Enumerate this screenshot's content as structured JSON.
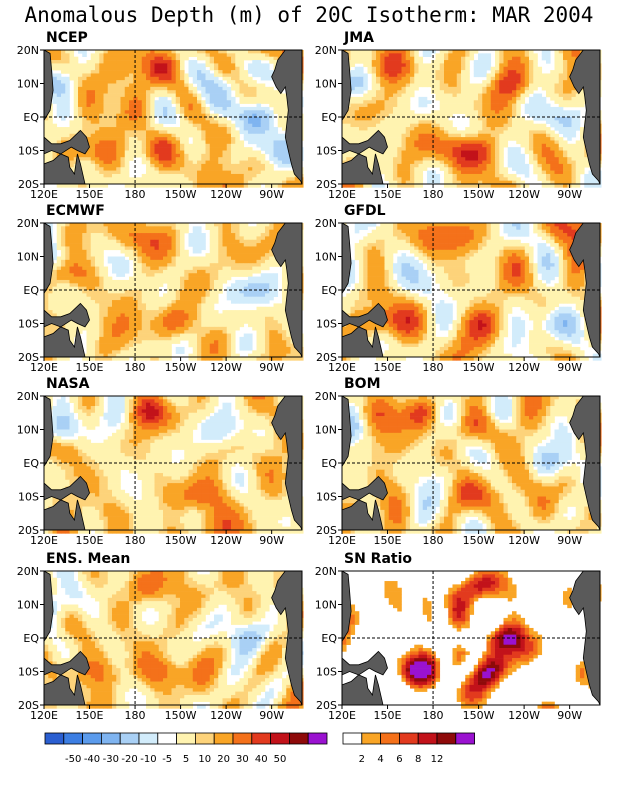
{
  "title": "Anomalous Depth (m) of 20C Isotherm: MAR 2004",
  "axes": {
    "lat_ticks": [
      "20N",
      "10N",
      "EQ",
      "10S",
      "20S"
    ],
    "lon_ticks": [
      "120E",
      "150E",
      "180",
      "150W",
      "120W",
      "90W"
    ]
  },
  "colors": {
    "land": "#5a5a5a",
    "depth_scale": [
      "#2b5fd1",
      "#3c7ee3",
      "#5b9bec",
      "#7fb4f0",
      "#a9d0f5",
      "#d2ecfb",
      "#ffffff",
      "#fff3b0",
      "#fdd37a",
      "#f9a526",
      "#f4711a",
      "#e23a1e",
      "#c2121a",
      "#8e0a0a",
      "#9a12d0"
    ],
    "sn_scale": [
      "#ffffff",
      "#f9a526",
      "#f4711a",
      "#e23a1e",
      "#c2121a",
      "#8e0a0a",
      "#9a12d0"
    ]
  },
  "chart_data": [
    {
      "type": "heatmap",
      "title": "NCEP",
      "variable": "20C isotherm depth anomaly (m)",
      "warm_centers": [
        "10S 150E",
        "10S 170W",
        "15N 165W",
        "20N 100W"
      ],
      "cool_centers": [
        "10N 130E",
        "10S 95W",
        "EQ 100W"
      ]
    },
    {
      "type": "heatmap",
      "title": "JMA",
      "variable": "20C isotherm depth anomaly (m)",
      "warm_centers": [
        "15N 145E",
        "10S 150W",
        "10N 130W",
        "10S 165W"
      ],
      "cool_centers": [
        "10N 125E",
        "EQ 95W"
      ]
    },
    {
      "type": "heatmap",
      "title": "ECMWF",
      "variable": "20C isotherm depth anomaly (m)",
      "warm_centers": [
        "15N 175W",
        "5N 135E",
        "10S 155W"
      ],
      "cool_centers": [
        "10N 125E",
        "EQ 105W"
      ]
    },
    {
      "type": "heatmap",
      "title": "GFDL",
      "variable": "20C isotherm depth anomaly (m)",
      "warm_centers": [
        "15N 160W",
        "10S 145E",
        "20N 85W",
        "10S 150W"
      ],
      "cool_centers": [
        "10S 100W",
        "5N 125E"
      ]
    },
    {
      "type": "heatmap",
      "title": "NASA",
      "variable": "20C isotherm depth anomaly (m)",
      "warm_centers": [
        "15N 170W",
        "5N 125E",
        "10S 140W",
        "20S 130W"
      ],
      "cool_centers": [
        "10N 130E",
        "10N 120W"
      ]
    },
    {
      "type": "heatmap",
      "title": "BOM",
      "variable": "20C isotherm depth anomaly (m)",
      "warm_centers": [
        "15N 170E",
        "10S 155W",
        "10N 150W"
      ],
      "cool_centers": [
        "10N 125E",
        "EQ 100W"
      ]
    },
    {
      "type": "heatmap",
      "title": "ENS. Mean",
      "variable": "20C isotherm depth anomaly (m)",
      "warm_centers": [
        "15N 170W",
        "10S 160W",
        "10S 150E"
      ],
      "cool_centers": [
        "10N 128E",
        "EQ 105W"
      ]
    },
    {
      "type": "heatmap",
      "title": "SN Ratio",
      "variable": "signal to noise ratio",
      "warm_centers": [
        "EQ 135W",
        "10S 170E",
        "10S 140W",
        "15N 150W"
      ],
      "cool_centers": []
    }
  ],
  "colorbars": {
    "depth_labels": [
      "-50",
      "-40",
      "-30",
      "-20",
      "-10",
      "-5",
      "5",
      "10",
      "20",
      "30",
      "40",
      "50"
    ],
    "sn_labels": [
      "2",
      "4",
      "6",
      "8",
      "12"
    ]
  }
}
